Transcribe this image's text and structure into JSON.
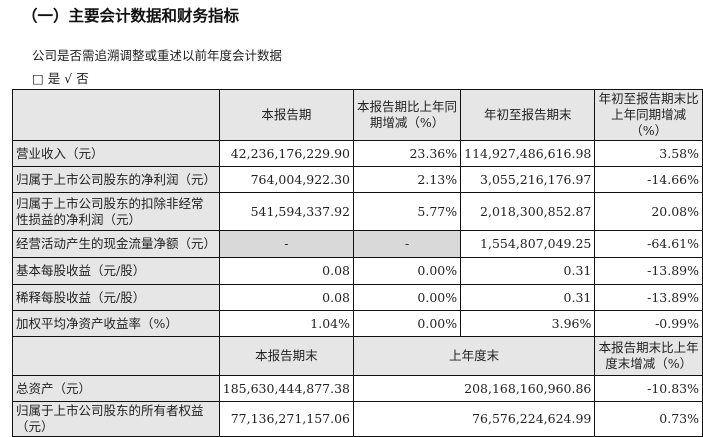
{
  "title": "（一）主要会计数据和财务指标",
  "question": "公司是否需追溯调整或重述以前年度会计数据",
  "options": "□ 是 √ 否",
  "header1": [
    "",
    "本报告期",
    "本报告期比上年同期增减（%）",
    "年初至报告期末",
    "年初至报告期末比上年同期增减（%）"
  ],
  "rows1": [
    [
      "营业收入（元）",
      "42,236,176,229.90",
      "23.36%",
      "114,927,486,616.98",
      "3.58%"
    ],
    [
      "归属于上市公司股东的净利润（元）",
      "764,004,922.30",
      "2.13%",
      "3,055,216,176.97",
      "-14.66%"
    ],
    [
      "归属于上市公司股东的扣除非经常性损益的净利润（元）",
      "541,594,337.92",
      "5.77%",
      "2,018,300,852.87",
      "20.08%"
    ],
    [
      "经营活动产生的现金流量净额（元）",
      "-",
      "-",
      "1,554,807,049.25",
      "-64.61%"
    ],
    [
      "基本每股收益（元/股）",
      "0.08",
      "0.00%",
      "0.31",
      "-13.89%"
    ],
    [
      "稀释每股收益（元/股）",
      "0.08",
      "0.00%",
      "0.31",
      "-13.89%"
    ],
    [
      "加权平均净资产收益率（%）",
      "1.04%",
      "0.00%",
      "3.96%",
      "-0.99%"
    ]
  ],
  "header2": [
    "",
    "本报告期末",
    "上年度末",
    "本报告期末比上年度末增减（%）"
  ],
  "rows2": [
    [
      "总资产（元）",
      "185,630,444,877.38",
      "208,168,160,960.86",
      "-10.83%"
    ],
    [
      "归属于上市公司股东的所有者权益（元）",
      "77,136,271,157.06",
      "76,576,224,624.99",
      "0.73%"
    ]
  ]
}
